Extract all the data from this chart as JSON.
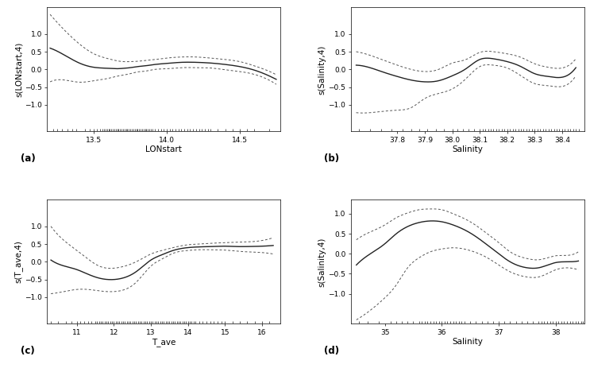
{
  "panels": [
    {
      "label": "(a)",
      "xlabel": "LONstart",
      "ylabel": "s(LONstart,4)",
      "xlim": [
        13.18,
        14.78
      ],
      "ylim": [
        -1.75,
        1.75
      ],
      "xticks": [
        13.5,
        14.0,
        14.5
      ],
      "yticks": [
        -1.0,
        -0.5,
        0.0,
        0.5,
        1.0
      ],
      "smooth_x": [
        13.2,
        13.3,
        13.4,
        13.5,
        13.6,
        13.65,
        13.7,
        13.75,
        13.8,
        13.85,
        13.9,
        14.0,
        14.1,
        14.2,
        14.3,
        14.4,
        14.5,
        14.6,
        14.7,
        14.75
      ],
      "smooth_y": [
        0.6,
        0.4,
        0.18,
        0.06,
        0.03,
        0.02,
        0.03,
        0.05,
        0.08,
        0.1,
        0.13,
        0.17,
        0.2,
        0.2,
        0.18,
        0.14,
        0.08,
        -0.02,
        -0.18,
        -0.28
      ],
      "upper_y": [
        1.55,
        1.1,
        0.72,
        0.44,
        0.3,
        0.25,
        0.22,
        0.22,
        0.23,
        0.25,
        0.27,
        0.32,
        0.35,
        0.35,
        0.32,
        0.28,
        0.22,
        0.1,
        -0.05,
        -0.15
      ],
      "lower_y": [
        -0.35,
        -0.3,
        -0.36,
        -0.32,
        -0.25,
        -0.2,
        -0.16,
        -0.12,
        -0.07,
        -0.05,
        -0.01,
        0.02,
        0.05,
        0.05,
        0.04,
        -0.01,
        -0.06,
        -0.14,
        -0.3,
        -0.42
      ],
      "rug_x": [
        13.22,
        13.25,
        13.28,
        13.32,
        13.35,
        13.38,
        13.44,
        13.47,
        13.5,
        13.52,
        13.54,
        13.56,
        13.57,
        13.58,
        13.59,
        13.6,
        13.61,
        13.62,
        13.63,
        13.64,
        13.65,
        13.66,
        13.67,
        13.68,
        13.69,
        13.7,
        13.71,
        13.72,
        13.73,
        13.74,
        13.75,
        13.76,
        13.77,
        13.78,
        13.79,
        13.8,
        13.81,
        13.82,
        13.83,
        13.84,
        13.85,
        13.86,
        13.87,
        13.88,
        13.89,
        13.9,
        13.92,
        13.94,
        13.96,
        13.98,
        14.0,
        14.02,
        14.04,
        14.06,
        14.08,
        14.1,
        14.12,
        14.14,
        14.16,
        14.18,
        14.2,
        14.22,
        14.24,
        14.26,
        14.28,
        14.3,
        14.35,
        14.4,
        14.45,
        14.5,
        14.55,
        14.6,
        14.7
      ]
    },
    {
      "label": "(b)",
      "xlabel": "Salinity",
      "ylabel": "s(Salinity,4)",
      "xlim": [
        37.63,
        38.48
      ],
      "ylim": [
        -1.75,
        1.75
      ],
      "xticks": [
        37.8,
        37.9,
        38.0,
        38.1,
        38.2,
        38.3,
        38.4
      ],
      "yticks": [
        -1.0,
        -0.5,
        0.0,
        0.5,
        1.0
      ],
      "smooth_x": [
        37.65,
        37.7,
        37.75,
        37.8,
        37.85,
        37.9,
        37.95,
        38.0,
        38.05,
        38.1,
        38.15,
        38.2,
        38.25,
        38.3,
        38.35,
        38.4,
        38.45
      ],
      "smooth_y": [
        0.12,
        0.05,
        -0.08,
        -0.2,
        -0.3,
        -0.35,
        -0.32,
        -0.18,
        0.02,
        0.28,
        0.3,
        0.22,
        0.08,
        -0.12,
        -0.2,
        -0.22,
        0.05
      ],
      "upper_y": [
        0.5,
        0.4,
        0.26,
        0.12,
        0.0,
        -0.06,
        0.0,
        0.18,
        0.28,
        0.48,
        0.5,
        0.44,
        0.34,
        0.16,
        0.06,
        0.04,
        0.3
      ],
      "lower_y": [
        -1.22,
        -1.22,
        -1.18,
        -1.15,
        -1.08,
        -0.82,
        -0.68,
        -0.55,
        -0.26,
        0.08,
        0.12,
        0.04,
        -0.18,
        -0.4,
        -0.46,
        -0.48,
        -0.18
      ],
      "rug_x": [
        37.66,
        37.7,
        37.74,
        37.78,
        37.82,
        37.85,
        37.88,
        37.91,
        37.94,
        37.97,
        38.0,
        38.02,
        38.04,
        38.06,
        38.08,
        38.1,
        38.11,
        38.12,
        38.13,
        38.14,
        38.15,
        38.16,
        38.17,
        38.18,
        38.19,
        38.2,
        38.21,
        38.22,
        38.23,
        38.24,
        38.25,
        38.26,
        38.27,
        38.28,
        38.29,
        38.3,
        38.31,
        38.32,
        38.33,
        38.34,
        38.35,
        38.36,
        38.37,
        38.38,
        38.39,
        38.4,
        38.41,
        38.42,
        38.43,
        38.44,
        38.45,
        38.46,
        38.48
      ]
    },
    {
      "label": "(c)",
      "xlabel": "T_ave",
      "ylabel": "s(T_ave,4)",
      "xlim": [
        10.2,
        16.5
      ],
      "ylim": [
        -1.75,
        1.75
      ],
      "xticks": [
        11,
        12,
        13,
        14,
        15,
        16
      ],
      "yticks": [
        -1.0,
        -0.5,
        0.0,
        0.5,
        1.0
      ],
      "smooth_x": [
        10.3,
        10.6,
        11.0,
        11.3,
        11.6,
        12.0,
        12.3,
        12.6,
        13.0,
        13.3,
        13.6,
        14.0,
        14.3,
        14.6,
        15.0,
        15.3,
        15.6,
        16.0,
        16.3
      ],
      "smooth_y": [
        0.05,
        -0.1,
        -0.22,
        -0.35,
        -0.46,
        -0.5,
        -0.44,
        -0.28,
        0.05,
        0.2,
        0.32,
        0.4,
        0.42,
        0.43,
        0.44,
        0.43,
        0.43,
        0.44,
        0.46
      ],
      "upper_y": [
        1.0,
        0.65,
        0.32,
        0.08,
        -0.12,
        -0.18,
        -0.12,
        0.0,
        0.22,
        0.32,
        0.4,
        0.48,
        0.5,
        0.52,
        0.54,
        0.55,
        0.56,
        0.6,
        0.68
      ],
      "lower_y": [
        -0.9,
        -0.85,
        -0.78,
        -0.78,
        -0.82,
        -0.84,
        -0.78,
        -0.58,
        -0.12,
        0.08,
        0.24,
        0.32,
        0.34,
        0.34,
        0.33,
        0.3,
        0.28,
        0.26,
        0.22
      ],
      "rug_x": [
        10.3,
        10.5,
        10.7,
        10.85,
        11.0,
        11.1,
        11.2,
        11.3,
        11.4,
        11.5,
        11.55,
        11.6,
        11.65,
        11.7,
        11.75,
        11.8,
        11.85,
        11.9,
        11.95,
        12.0,
        12.05,
        12.1,
        12.15,
        12.2,
        12.25,
        12.3,
        12.35,
        12.4,
        12.45,
        12.5,
        12.55,
        12.6,
        12.65,
        12.7,
        12.75,
        12.8,
        12.85,
        12.9,
        12.95,
        13.0,
        13.05,
        13.1,
        13.15,
        13.2,
        13.25,
        13.3,
        13.35,
        13.4,
        13.45,
        13.5,
        13.55,
        13.6,
        13.65,
        13.7,
        13.75,
        13.8,
        13.85,
        13.9,
        13.95,
        14.0,
        14.05,
        14.1,
        14.15,
        14.2,
        14.3,
        14.4,
        14.5,
        14.6,
        14.7,
        14.8,
        14.9,
        15.0,
        15.2,
        15.4,
        15.6,
        15.8,
        16.0,
        16.2
      ]
    },
    {
      "label": "(d)",
      "xlabel": "Salinity",
      "ylabel": "s(Salinity,4)",
      "xlim": [
        34.4,
        38.5
      ],
      "ylim": [
        -1.75,
        1.35
      ],
      "xticks": [
        35,
        36,
        37,
        38
      ],
      "yticks": [
        -1.0,
        -0.5,
        0.0,
        0.5,
        1.0
      ],
      "smooth_x": [
        34.5,
        34.8,
        35.0,
        35.2,
        35.4,
        35.6,
        35.8,
        36.0,
        36.2,
        36.5,
        36.8,
        37.0,
        37.2,
        37.5,
        37.7,
        38.0,
        38.2,
        38.4
      ],
      "smooth_y": [
        -0.28,
        0.05,
        0.25,
        0.5,
        0.68,
        0.78,
        0.82,
        0.8,
        0.72,
        0.52,
        0.22,
        0.0,
        -0.2,
        -0.35,
        -0.35,
        -0.22,
        -0.2,
        -0.18
      ],
      "upper_y": [
        0.35,
        0.58,
        0.72,
        0.9,
        1.02,
        1.1,
        1.12,
        1.1,
        1.0,
        0.8,
        0.5,
        0.28,
        0.05,
        -0.12,
        -0.15,
        -0.05,
        -0.04,
        0.05
      ],
      "lower_y": [
        -1.65,
        -1.35,
        -1.1,
        -0.78,
        -0.35,
        -0.1,
        0.05,
        0.12,
        0.15,
        0.08,
        -0.1,
        -0.28,
        -0.45,
        -0.58,
        -0.58,
        -0.4,
        -0.35,
        -0.4
      ],
      "rug_x": [
        34.55,
        34.7,
        34.9,
        35.1,
        35.2,
        35.3,
        35.4,
        35.5,
        35.6,
        35.65,
        35.7,
        35.75,
        35.8,
        35.85,
        35.9,
        35.95,
        36.0,
        36.05,
        36.1,
        36.15,
        36.2,
        36.25,
        36.3,
        36.35,
        36.4,
        36.5,
        36.6,
        36.7,
        36.8,
        36.9,
        37.0,
        37.1,
        37.2,
        37.3,
        37.4,
        37.5,
        37.6,
        37.7,
        37.75,
        37.8,
        37.85,
        37.9,
        37.95,
        38.0,
        38.05,
        38.1,
        38.15,
        38.2,
        38.25,
        38.3,
        38.35,
        38.4,
        38.45,
        38.48
      ]
    }
  ],
  "line_color": "#222222",
  "dashed_color": "#555555",
  "background_color": "#ffffff",
  "tick_fontsize": 6.5,
  "label_fontsize": 7.5,
  "panel_label_fontsize": 8.5
}
